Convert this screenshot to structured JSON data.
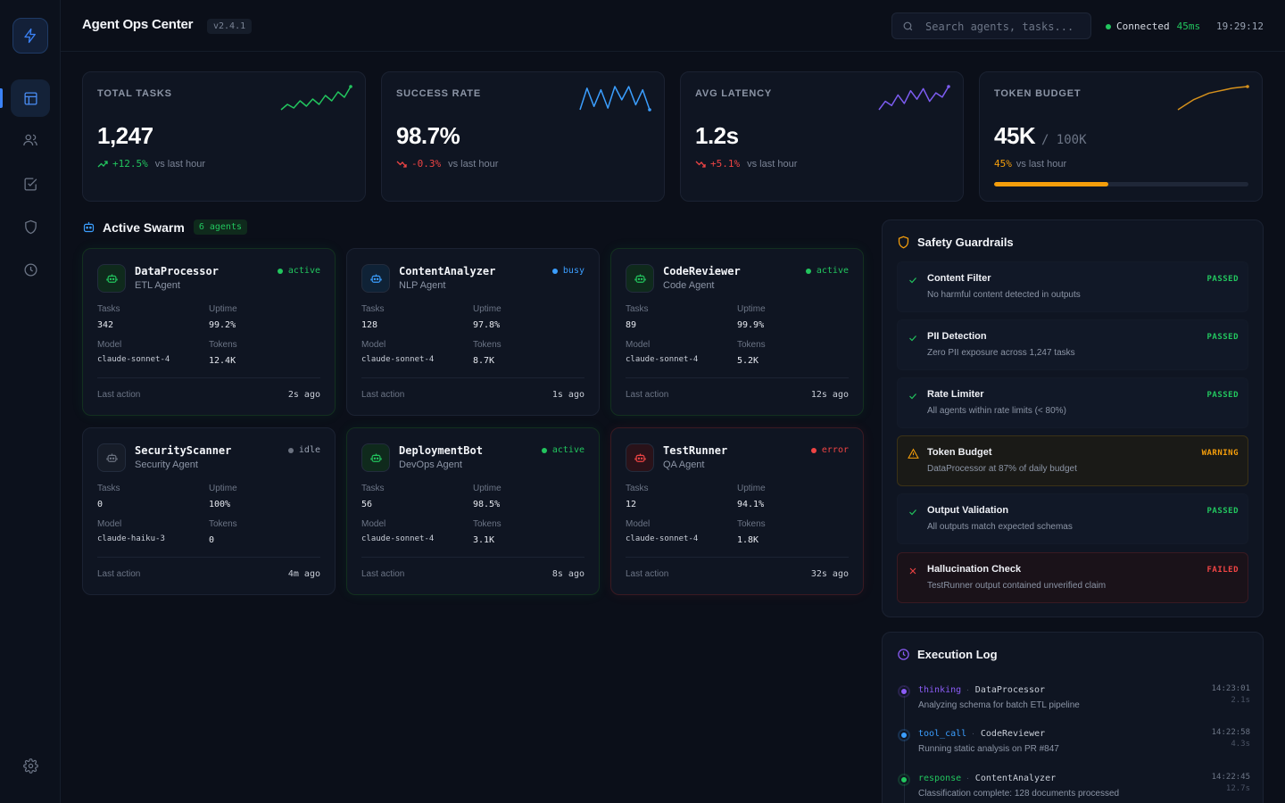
{
  "app": {
    "title": "Agent Ops Center",
    "version": "v2.4.1"
  },
  "header": {
    "search_placeholder": "Search agents, tasks...",
    "connection_label": "Connected",
    "latency": "45ms",
    "clock": "19:29:12"
  },
  "colors": {
    "accent": "#3b82f6",
    "success": "#22c55e",
    "warning": "#f59e0b",
    "error": "#ef4444",
    "info": "#3b9eff",
    "idle": "#6b7280"
  },
  "stats": [
    {
      "label": "TOTAL TASKS",
      "value": "1,247",
      "sub": "",
      "delta": "+12.5%",
      "vs": "vs last hour",
      "trend": "up",
      "color": "#22c55e",
      "spark": [
        3,
        6,
        4,
        8,
        5,
        9,
        6,
        11,
        8,
        13,
        10,
        16
      ]
    },
    {
      "label": "SUCCESS RATE",
      "value": "98.7%",
      "sub": "",
      "delta": "-0.3%",
      "vs": "vs last hour",
      "trend": "down",
      "color": "#3b9eff",
      "spark": [
        2,
        15,
        4,
        14,
        3,
        16,
        8,
        16,
        5,
        14,
        2
      ]
    },
    {
      "label": "AVG LATENCY",
      "value": "1.2s",
      "sub": "",
      "delta": "+5.1%",
      "vs": "vs last hour",
      "trend": "down",
      "color": "#7c5cf0",
      "spark": [
        2,
        6,
        4,
        9,
        5,
        11,
        7,
        12,
        6,
        10,
        8,
        13
      ]
    },
    {
      "label": "TOKEN BUDGET",
      "value": "45K",
      "sub": "/ 100K",
      "delta": "45%",
      "vs": "vs last hour",
      "trend": "none",
      "color": "#d4901c",
      "spark": [
        1,
        4,
        7,
        9,
        11,
        12,
        13,
        14,
        14.5,
        15
      ],
      "progress": 0.45
    }
  ],
  "swarm": {
    "title": "Active Swarm",
    "badge": "6 agents"
  },
  "labels": {
    "tasks": "Tasks",
    "uptime": "Uptime",
    "model": "Model",
    "tokens": "Tokens",
    "last_action": "Last action"
  },
  "agents": [
    {
      "name": "DataProcessor",
      "type": "ETL Agent",
      "status": "active",
      "tasks": "342",
      "uptime": "99.2%",
      "model": "claude-sonnet-4",
      "tokens": "12.4K",
      "last_action": "2s ago"
    },
    {
      "name": "ContentAnalyzer",
      "type": "NLP Agent",
      "status": "busy",
      "tasks": "128",
      "uptime": "97.8%",
      "model": "claude-sonnet-4",
      "tokens": "8.7K",
      "last_action": "1s ago"
    },
    {
      "name": "CodeReviewer",
      "type": "Code Agent",
      "status": "active",
      "tasks": "89",
      "uptime": "99.9%",
      "model": "claude-sonnet-4",
      "tokens": "5.2K",
      "last_action": "12s ago"
    },
    {
      "name": "SecurityScanner",
      "type": "Security Agent",
      "status": "idle",
      "tasks": "0",
      "uptime": "100%",
      "model": "claude-haiku-3",
      "tokens": "0",
      "last_action": "4m ago"
    },
    {
      "name": "DeploymentBot",
      "type": "DevOps Agent",
      "status": "active",
      "tasks": "56",
      "uptime": "98.5%",
      "model": "claude-sonnet-4",
      "tokens": "3.1K",
      "last_action": "8s ago"
    },
    {
      "name": "TestRunner",
      "type": "QA Agent",
      "status": "error",
      "tasks": "12",
      "uptime": "94.1%",
      "model": "claude-sonnet-4",
      "tokens": "1.8K",
      "last_action": "32s ago"
    }
  ],
  "guardrails": {
    "title": "Safety Guardrails",
    "items": [
      {
        "title": "Content Filter",
        "desc": "No harmful content detected in outputs",
        "status": "PASSED",
        "kind": "pass"
      },
      {
        "title": "PII Detection",
        "desc": "Zero PII exposure across 1,247 tasks",
        "status": "PASSED",
        "kind": "pass"
      },
      {
        "title": "Rate Limiter",
        "desc": "All agents within rate limits (< 80%)",
        "status": "PASSED",
        "kind": "pass"
      },
      {
        "title": "Token Budget",
        "desc": "DataProcessor at 87% of daily budget",
        "status": "WARNING",
        "kind": "warn"
      },
      {
        "title": "Output Validation",
        "desc": "All outputs match expected schemas",
        "status": "PASSED",
        "kind": "pass"
      },
      {
        "title": "Hallucination Check",
        "desc": "TestRunner output contained unverified claim",
        "status": "FAILED",
        "kind": "fail"
      }
    ]
  },
  "log": {
    "title": "Execution Log",
    "items": [
      {
        "type": "thinking",
        "agent": "DataProcessor",
        "msg": "Analyzing schema for batch ETL pipeline",
        "time": "14:23:01",
        "dur": "2.1s",
        "color": "#8b5cf6"
      },
      {
        "type": "tool_call",
        "agent": "CodeReviewer",
        "msg": "Running static analysis on PR #847",
        "time": "14:22:58",
        "dur": "4.3s",
        "color": "#3b9eff"
      },
      {
        "type": "response",
        "agent": "ContentAnalyzer",
        "msg": "Classification complete: 128 documents processed",
        "time": "14:22:45",
        "dur": "12.7s",
        "color": "#22c55e"
      }
    ]
  }
}
